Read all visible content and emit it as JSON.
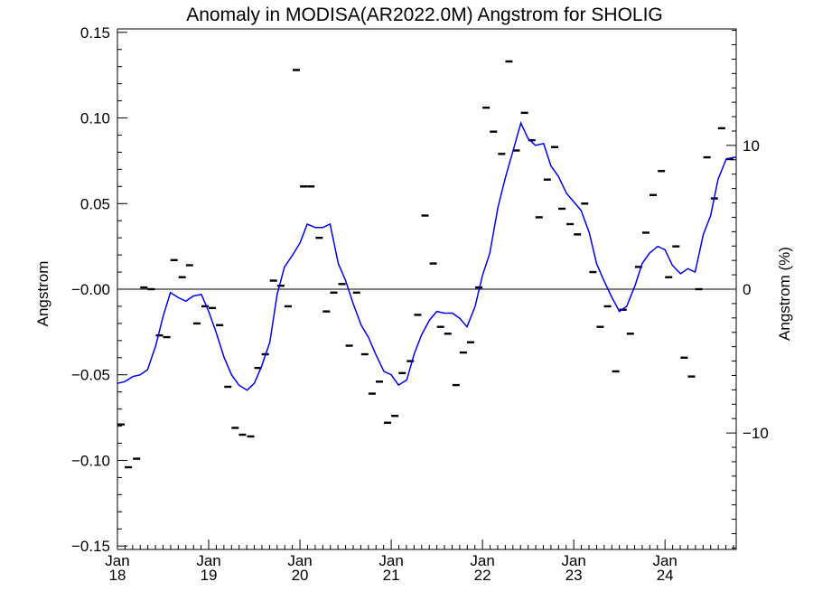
{
  "chart_data": {
    "type": "line",
    "title": "Anomaly in MODISA(AR2022.0M) Angstrom for SHOLIG",
    "ylabel": "Angstrom",
    "y2label": "Angstrom (%)",
    "ylim": [
      -0.152,
      0.152
    ],
    "y2lim": [
      -18.1,
      18.1
    ],
    "xlim": [
      2018.0,
      2024.78
    ],
    "y_ticks": [
      -0.15,
      -0.1,
      -0.05,
      0.0,
      0.05,
      0.1,
      0.15
    ],
    "y_tick_labels": [
      "−0.15",
      "−0.10",
      "−0.05",
      "−0.00",
      "0.05",
      "0.10",
      "0.15"
    ],
    "y2_ticks": [
      -10,
      0,
      10
    ],
    "y2_tick_labels": [
      "−10",
      "0",
      "10"
    ],
    "x_ticks": [
      2018.0,
      2019.0,
      2020.0,
      2021.0,
      2022.0,
      2023.0,
      2024.0
    ],
    "x_tick_labels": [
      [
        "Jan",
        "18"
      ],
      [
        "Jan",
        "19"
      ],
      [
        "Jan",
        "20"
      ],
      [
        "Jan",
        "21"
      ],
      [
        "Jan",
        "22"
      ],
      [
        "Jan",
        "23"
      ],
      [
        "Jan",
        "24"
      ]
    ],
    "zero_line": true,
    "grid": false,
    "series": [
      {
        "style": "points",
        "color": "#000000",
        "x": [
          2018.04,
          2018.12,
          2018.21,
          2018.29,
          2018.37,
          2018.46,
          2018.54,
          2018.62,
          2018.71,
          2018.79,
          2018.87,
          2018.96,
          2019.04,
          2019.12,
          2019.21,
          2019.29,
          2019.37,
          2019.46,
          2019.54,
          2019.62,
          2019.71,
          2019.79,
          2019.87,
          2019.96,
          2020.04,
          2020.12,
          2020.21,
          2020.29,
          2020.37,
          2020.46,
          2020.54,
          2020.62,
          2020.71,
          2020.79,
          2020.87,
          2020.96,
          2021.04,
          2021.12,
          2021.21,
          2021.29,
          2021.37,
          2021.46,
          2021.54,
          2021.62,
          2021.71,
          2021.79,
          2021.87,
          2021.96,
          2022.04,
          2022.12,
          2022.21,
          2022.29,
          2022.37,
          2022.46,
          2022.54,
          2022.62,
          2022.71,
          2022.79,
          2022.87,
          2022.96,
          2023.04,
          2023.12,
          2023.21,
          2023.29,
          2023.37,
          2023.46,
          2023.54,
          2023.62,
          2023.71,
          2023.79,
          2023.87,
          2023.96,
          2024.04,
          2024.12,
          2024.21,
          2024.29,
          2024.37,
          2024.46,
          2024.54,
          2024.62,
          2024.71
        ],
        "y": [
          -0.079,
          -0.104,
          -0.099,
          0.001,
          0.0,
          -0.027,
          -0.028,
          0.017,
          0.007,
          0.014,
          -0.02,
          -0.01,
          -0.011,
          -0.021,
          -0.057,
          -0.081,
          -0.085,
          -0.086,
          -0.046,
          -0.038,
          0.005,
          0.002,
          -0.01,
          0.128,
          0.06,
          0.06,
          0.03,
          -0.013,
          -0.002,
          0.003,
          -0.033,
          -0.002,
          -0.038,
          -0.061,
          -0.054,
          -0.078,
          -0.074,
          -0.049,
          -0.042,
          -0.015,
          0.043,
          0.015,
          -0.022,
          -0.026,
          -0.056,
          -0.037,
          -0.031,
          0.001,
          0.106,
          0.092,
          0.079,
          0.133,
          0.081,
          0.103,
          0.087,
          0.042,
          0.064,
          0.083,
          0.047,
          0.038,
          0.032,
          0.05,
          0.01,
          -0.022,
          -0.01,
          -0.048,
          -0.012,
          -0.026,
          0.013,
          0.033,
          0.055,
          0.069,
          0.007,
          0.025,
          -0.04,
          -0.051,
          0.0,
          0.077,
          0.053,
          0.094,
          0.076
        ]
      },
      {
        "style": "line",
        "color": "#0000ee",
        "x": [
          2018.0,
          2018.08,
          2018.17,
          2018.25,
          2018.33,
          2018.42,
          2018.5,
          2018.58,
          2018.67,
          2018.75,
          2018.83,
          2018.92,
          2019.0,
          2019.08,
          2019.17,
          2019.25,
          2019.33,
          2019.42,
          2019.5,
          2019.58,
          2019.67,
          2019.75,
          2019.83,
          2019.92,
          2020.0,
          2020.08,
          2020.17,
          2020.25,
          2020.33,
          2020.42,
          2020.5,
          2020.58,
          2020.67,
          2020.75,
          2020.83,
          2020.92,
          2021.0,
          2021.08,
          2021.17,
          2021.25,
          2021.33,
          2021.42,
          2021.5,
          2021.58,
          2021.67,
          2021.75,
          2021.83,
          2021.92,
          2022.0,
          2022.08,
          2022.17,
          2022.25,
          2022.33,
          2022.42,
          2022.5,
          2022.58,
          2022.67,
          2022.75,
          2022.83,
          2022.92,
          2023.0,
          2023.08,
          2023.17,
          2023.25,
          2023.33,
          2023.42,
          2023.5,
          2023.58,
          2023.67,
          2023.75,
          2023.83,
          2023.92,
          2024.0,
          2024.08,
          2024.17,
          2024.25,
          2024.33,
          2024.42,
          2024.5,
          2024.58,
          2024.67,
          2024.75,
          2024.78
        ],
        "y": [
          -0.055,
          -0.054,
          -0.051,
          -0.05,
          -0.047,
          -0.033,
          -0.016,
          -0.002,
          -0.005,
          -0.007,
          -0.004,
          -0.003,
          -0.013,
          -0.025,
          -0.04,
          -0.05,
          -0.056,
          -0.059,
          -0.055,
          -0.045,
          -0.031,
          -0.003,
          0.013,
          0.02,
          0.027,
          0.038,
          0.036,
          0.036,
          0.038,
          0.015,
          0.005,
          -0.008,
          -0.021,
          -0.028,
          -0.038,
          -0.048,
          -0.05,
          -0.056,
          -0.053,
          -0.038,
          -0.027,
          -0.018,
          -0.013,
          -0.014,
          -0.014,
          -0.017,
          -0.022,
          -0.01,
          0.008,
          0.021,
          0.048,
          0.065,
          0.08,
          0.097,
          0.088,
          0.084,
          0.085,
          0.072,
          0.066,
          0.056,
          0.051,
          0.046,
          0.033,
          0.015,
          0.005,
          -0.005,
          -0.013,
          -0.01,
          0.002,
          0.015,
          0.021,
          0.025,
          0.023,
          0.014,
          0.009,
          0.012,
          0.01,
          0.032,
          0.043,
          0.064,
          0.076,
          0.077,
          0.077
        ]
      }
    ]
  }
}
